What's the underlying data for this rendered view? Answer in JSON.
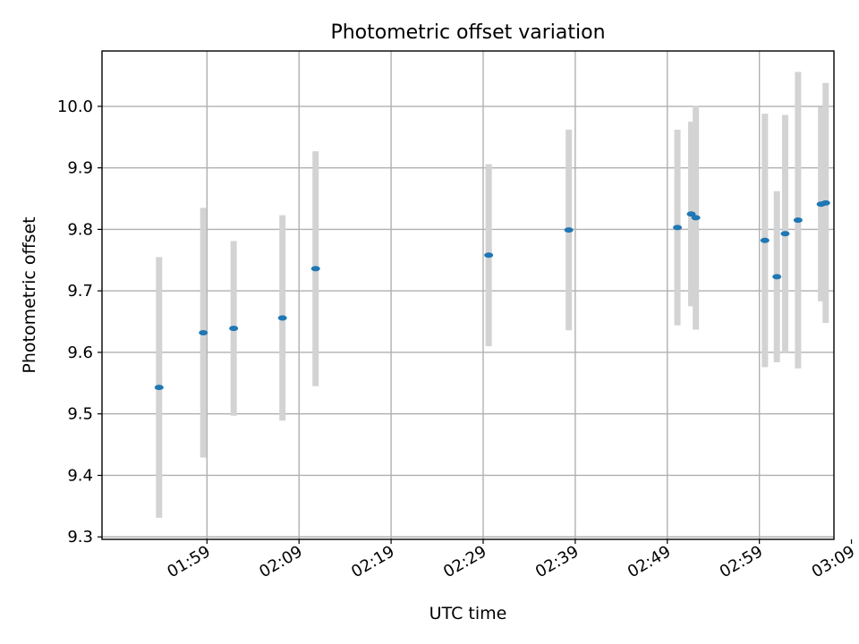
{
  "chart_data": {
    "type": "scatter",
    "title": "Photometric offset variation",
    "xlabel": "UTC time",
    "ylabel": "Photometric offset",
    "x_unit": "minutes",
    "xlim": [
      107.6,
      187.1
    ],
    "ylim": [
      9.296,
      10.09
    ],
    "xticks": [
      {
        "label": "01:59",
        "value": 119
      },
      {
        "label": "02:09",
        "value": 129
      },
      {
        "label": "02:19",
        "value": 139
      },
      {
        "label": "02:29",
        "value": 149
      },
      {
        "label": "02:39",
        "value": 159
      },
      {
        "label": "02:49",
        "value": 169
      },
      {
        "label": "02:59",
        "value": 179
      },
      {
        "label": "03:09",
        "value": 189
      }
    ],
    "yticks": [
      {
        "label": "9.3",
        "value": 9.3
      },
      {
        "label": "9.4",
        "value": 9.4
      },
      {
        "label": "9.5",
        "value": 9.5
      },
      {
        "label": "9.6",
        "value": 9.6
      },
      {
        "label": "9.7",
        "value": 9.7
      },
      {
        "label": "9.8",
        "value": 9.8
      },
      {
        "label": "9.9",
        "value": 9.9
      },
      {
        "label": "10.0",
        "value": 10.0
      }
    ],
    "grid": true,
    "colors": {
      "point": "#1f77b4",
      "errorbar": "#d3d3d3",
      "grid": "#b0b0b0"
    },
    "points": [
      {
        "x": 113.8,
        "y": 9.543,
        "yerr": 0.212
      },
      {
        "x": 118.6,
        "y": 9.632,
        "yerr": 0.203
      },
      {
        "x": 121.9,
        "y": 9.639,
        "yerr": 0.142
      },
      {
        "x": 127.2,
        "y": 9.656,
        "yerr": 0.167
      },
      {
        "x": 130.8,
        "y": 9.736,
        "yerr": 0.191
      },
      {
        "x": 149.6,
        "y": 9.758,
        "yerr": 0.148
      },
      {
        "x": 158.3,
        "y": 9.799,
        "yerr": 0.163
      },
      {
        "x": 170.1,
        "y": 9.803,
        "yerr": 0.159
      },
      {
        "x": 171.6,
        "y": 9.825,
        "yerr": 0.15
      },
      {
        "x": 172.1,
        "y": 9.819,
        "yerr": 0.182
      },
      {
        "x": 179.6,
        "y": 9.782,
        "yerr": 0.206
      },
      {
        "x": 180.9,
        "y": 9.723,
        "yerr": 0.139
      },
      {
        "x": 181.8,
        "y": 9.793,
        "yerr": 0.193
      },
      {
        "x": 183.2,
        "y": 9.815,
        "yerr": 0.241
      },
      {
        "x": 185.7,
        "y": 9.841,
        "yerr": 0.158
      },
      {
        "x": 186.2,
        "y": 9.843,
        "yerr": 0.195
      }
    ]
  }
}
